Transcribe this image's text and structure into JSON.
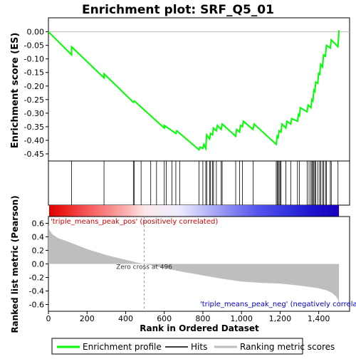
{
  "chart_data": {
    "type": "line",
    "title": "Enrichment plot: SRF_Q5_01",
    "es_panel": {
      "ylabel": "Enrichment score (ES)",
      "ylim": [
        -0.45,
        0.02
      ],
      "yticks": [
        "0.00",
        "-0.05",
        "-0.10",
        "-0.15",
        "-0.20",
        "-0.25",
        "-0.30",
        "-0.35",
        "-0.40",
        "-0.45"
      ],
      "ytick_values": [
        0.0,
        -0.05,
        -0.1,
        -0.15,
        -0.2,
        -0.25,
        -0.3,
        -0.35,
        -0.4,
        -0.45
      ],
      "series": [
        {
          "name": "Enrichment profile",
          "color": "#00ff00",
          "x": [
            0,
            120,
            120,
            288,
            288,
            440,
            445,
            600,
            600,
            660,
            665,
            780,
            785,
            800,
            805,
            815,
            820,
            835,
            840,
            850,
            855,
            870,
            875,
            895,
            900,
            970,
            975,
            990,
            995,
            1005,
            1010,
            1060,
            1065,
            1180,
            1185,
            1190,
            1195,
            1205,
            1210,
            1230,
            1235,
            1255,
            1260,
            1290,
            1295,
            1300,
            1305,
            1340,
            1345,
            1360,
            1365,
            1370,
            1375,
            1380,
            1385,
            1395,
            1400,
            1405,
            1410,
            1420,
            1425,
            1435,
            1440,
            1460,
            1465,
            1500,
            1505
          ],
          "y": [
            0.0,
            -0.085,
            -0.055,
            -0.17,
            -0.155,
            -0.26,
            -0.255,
            -0.355,
            -0.345,
            -0.375,
            -0.365,
            -0.435,
            -0.425,
            -0.43,
            -0.415,
            -0.43,
            -0.38,
            -0.395,
            -0.375,
            -0.38,
            -0.355,
            -0.365,
            -0.345,
            -0.36,
            -0.34,
            -0.385,
            -0.36,
            -0.37,
            -0.345,
            -0.35,
            -0.33,
            -0.36,
            -0.34,
            -0.415,
            -0.385,
            -0.39,
            -0.365,
            -0.37,
            -0.34,
            -0.355,
            -0.33,
            -0.34,
            -0.32,
            -0.33,
            -0.305,
            -0.31,
            -0.28,
            -0.295,
            -0.27,
            -0.28,
            -0.25,
            -0.255,
            -0.215,
            -0.22,
            -0.185,
            -0.19,
            -0.15,
            -0.16,
            -0.12,
            -0.13,
            -0.085,
            -0.09,
            -0.05,
            -0.06,
            -0.03,
            -0.055,
            0.005
          ]
        }
      ]
    },
    "hits": [
      120,
      288,
      440,
      445,
      480,
      530,
      560,
      600,
      610,
      640,
      660,
      680,
      780,
      800,
      815,
      820,
      835,
      840,
      850,
      855,
      870,
      895,
      900,
      970,
      990,
      1005,
      1060,
      1180,
      1185,
      1190,
      1195,
      1200,
      1205,
      1230,
      1255,
      1290,
      1300,
      1340,
      1350,
      1360,
      1365,
      1370,
      1375,
      1380,
      1385,
      1395,
      1405,
      1410,
      1420,
      1425,
      1435,
      1440,
      1460,
      1465,
      1500
    ],
    "ranking_panel": {
      "ylabel": "Ranked list metric (Pearson)",
      "xlabel": "Rank in Ordered Dataset",
      "ylim": [
        -0.7,
        0.7
      ],
      "yticks": [
        "0.6",
        "0.4",
        "0.2",
        "0.0",
        "-0.2",
        "-0.4",
        "-0.6"
      ],
      "ytick_values": [
        0.6,
        0.4,
        0.2,
        0.0,
        -0.2,
        -0.4,
        -0.6
      ],
      "xlim": [
        0,
        1560
      ],
      "xticks": [
        "0",
        "200",
        "400",
        "600",
        "800",
        "1,000",
        "1,200",
        "1,400"
      ],
      "xtick_values": [
        0,
        200,
        400,
        600,
        800,
        1000,
        1200,
        1400
      ],
      "x": [
        0,
        5,
        20,
        50,
        100,
        200,
        300,
        400,
        460,
        496,
        560,
        700,
        800,
        900,
        1000,
        1100,
        1200,
        1300,
        1350,
        1400,
        1440,
        1470,
        1490,
        1500,
        1505
      ],
      "y": [
        0.58,
        0.5,
        0.44,
        0.38,
        0.33,
        0.22,
        0.13,
        0.06,
        0.02,
        0.0,
        -0.04,
        -0.12,
        -0.17,
        -0.22,
        -0.26,
        -0.28,
        -0.29,
        -0.32,
        -0.34,
        -0.36,
        -0.39,
        -0.43,
        -0.48,
        -0.53,
        -0.6
      ],
      "zero_cross_label": "Zero cross at 496",
      "zero_cross": 496,
      "pos_label": "'triple_means_peak_pos' (positively correlated)",
      "neg_label": "'triple_means_peak_neg' (negatively correla"
    },
    "legend": [
      {
        "label": "Enrichment profile",
        "color": "#00ff00"
      },
      {
        "label": "Hits",
        "color": "#000000"
      },
      {
        "label": "Ranking metric scores",
        "color": "#bebebe"
      }
    ]
  }
}
